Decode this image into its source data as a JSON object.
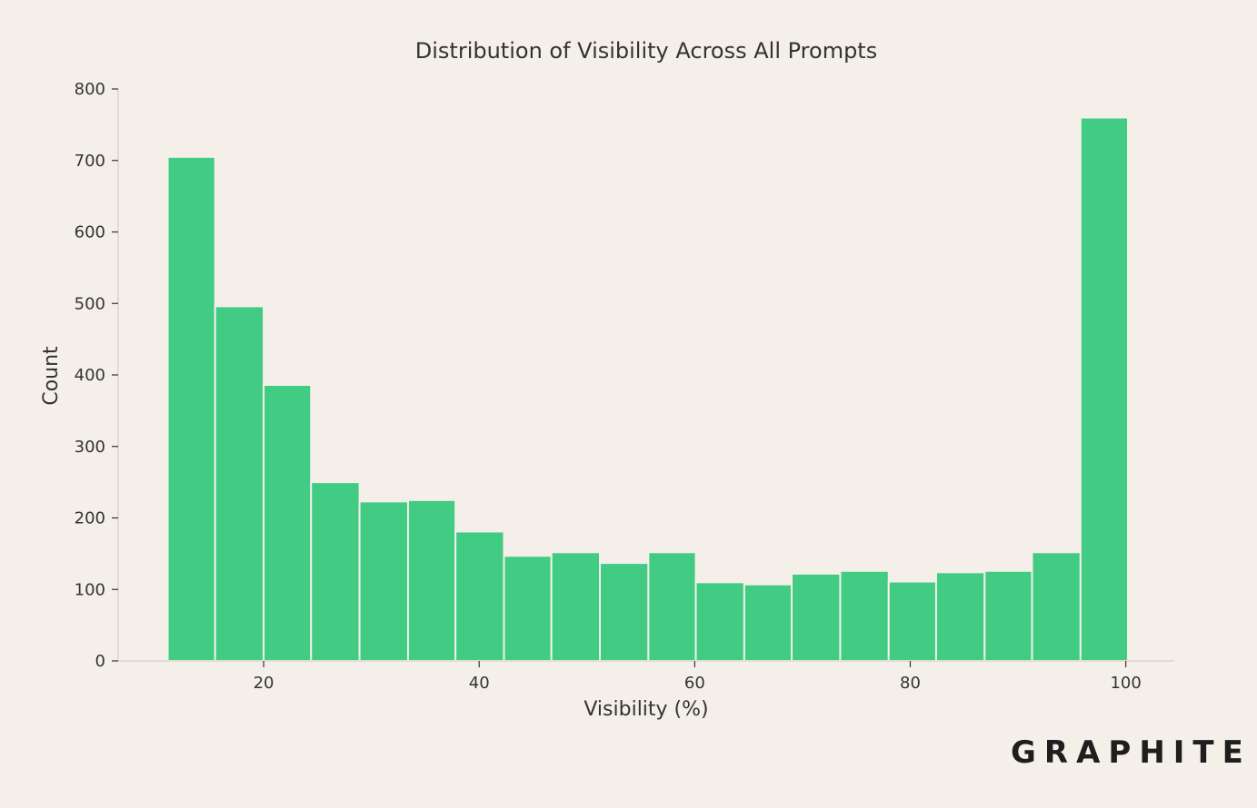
{
  "brand": {
    "logo_text": "GRAPHITE"
  },
  "chart_data": {
    "type": "bar",
    "title": "Distribution of Visibility Across All Prompts",
    "xlabel": "Visibility (%)",
    "ylabel": "Count",
    "xlim": [
      6.5,
      104.5
    ],
    "ylim": [
      0,
      800
    ],
    "xticks": [
      20,
      40,
      60,
      80,
      100
    ],
    "yticks": [
      0,
      100,
      200,
      300,
      400,
      500,
      600,
      700,
      800
    ],
    "bar_color": "#42cb82",
    "bins": [
      {
        "x0": 11.1,
        "x1": 15.5,
        "count": 705
      },
      {
        "x0": 15.5,
        "x1": 20.0,
        "count": 496
      },
      {
        "x0": 20.0,
        "x1": 24.4,
        "count": 386
      },
      {
        "x0": 24.4,
        "x1": 28.9,
        "count": 250
      },
      {
        "x0": 28.9,
        "x1": 33.4,
        "count": 223
      },
      {
        "x0": 33.4,
        "x1": 37.8,
        "count": 225
      },
      {
        "x0": 37.8,
        "x1": 42.3,
        "count": 181
      },
      {
        "x0": 42.3,
        "x1": 46.7,
        "count": 147
      },
      {
        "x0": 46.7,
        "x1": 51.2,
        "count": 152
      },
      {
        "x0": 51.2,
        "x1": 55.7,
        "count": 137
      },
      {
        "x0": 55.7,
        "x1": 60.1,
        "count": 152
      },
      {
        "x0": 60.1,
        "x1": 64.6,
        "count": 110
      },
      {
        "x0": 64.6,
        "x1": 69.0,
        "count": 107
      },
      {
        "x0": 69.0,
        "x1": 73.5,
        "count": 122
      },
      {
        "x0": 73.5,
        "x1": 78.0,
        "count": 126
      },
      {
        "x0": 78.0,
        "x1": 82.4,
        "count": 111
      },
      {
        "x0": 82.4,
        "x1": 86.9,
        "count": 124
      },
      {
        "x0": 86.9,
        "x1": 91.3,
        "count": 126
      },
      {
        "x0": 91.3,
        "x1": 95.8,
        "count": 152
      },
      {
        "x0": 95.8,
        "x1": 100.2,
        "count": 760
      }
    ]
  }
}
